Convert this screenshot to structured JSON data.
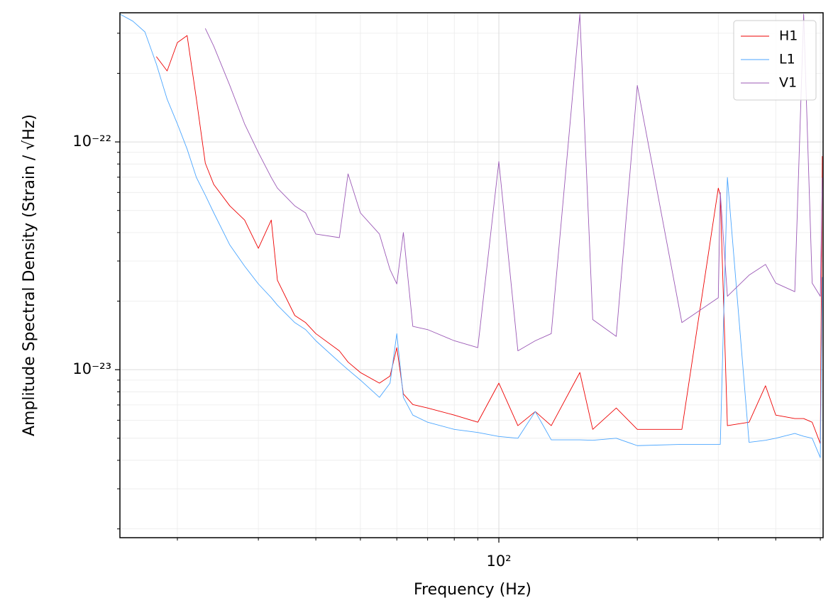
{
  "chart_data": {
    "type": "line",
    "xlabel": "Frequency (Hz)",
    "ylabel": "Amplitude Spectral Density (Strain / √Hz)",
    "xscale": "log",
    "yscale": "log",
    "grid": true,
    "legend": "upper right",
    "xlim": [
      15,
      507
    ],
    "ylim": [
      1.83e-24,
      3.69e-22
    ],
    "xticks": [
      {
        "value": 100,
        "label": "10²"
      }
    ],
    "yticks": [
      {
        "value": 1e-23,
        "label": "10⁻²³"
      },
      {
        "value": 1e-22,
        "label": "10⁻²²"
      }
    ],
    "minor_xticks": [
      20,
      30,
      40,
      50,
      60,
      70,
      80,
      90,
      200,
      300,
      400,
      500
    ],
    "minor_yticks": [
      2e-24,
      3e-24,
      4e-24,
      5e-24,
      6e-24,
      7e-24,
      8e-24,
      9e-24,
      2e-23,
      3e-23,
      4e-23,
      5e-23,
      6e-23,
      7e-23,
      8e-23,
      9e-23,
      2e-22,
      3e-22
    ],
    "x": [
      15,
      16,
      17,
      18,
      19,
      20,
      21,
      22,
      23,
      24,
      26,
      28,
      30,
      32,
      33,
      36,
      38,
      40,
      45,
      47,
      50,
      55,
      58,
      60,
      62,
      65,
      70,
      80,
      90,
      100,
      110,
      120,
      130,
      150,
      160,
      180,
      200,
      250,
      300,
      303,
      314,
      350,
      380,
      400,
      440,
      460,
      480,
      500,
      505
    ],
    "series": [
      {
        "name": "H1",
        "color": "#ee0000",
        "values": [
          null,
          null,
          null,
          2.37e-22,
          2.05e-22,
          2.73e-22,
          2.93e-22,
          1.54e-22,
          8.07e-23,
          6.5e-23,
          5.24e-23,
          4.54e-23,
          3.41e-23,
          4.54e-23,
          2.47e-23,
          1.73e-23,
          1.61e-23,
          1.44e-23,
          1.21e-23,
          1.08e-23,
          9.72e-24,
          8.73e-24,
          9.38e-24,
          1.25e-23,
          7.83e-24,
          7.03e-24,
          6.79e-24,
          6.32e-24,
          5.88e-24,
          8.73e-24,
          5.68e-24,
          6.55e-24,
          5.68e-24,
          9.72e-24,
          5.47e-24,
          6.79e-24,
          5.47e-24,
          5.47e-24,
          6.27e-23,
          5.84e-23,
          5.68e-24,
          5.88e-24,
          8.5e-24,
          6.32e-24,
          6.1e-24,
          6.1e-24,
          5.88e-24,
          4.74e-24,
          8.66e-23
        ]
      },
      {
        "name": "L1",
        "color": "#4ba6ff",
        "values": [
          3.64e-22,
          3.39e-22,
          3.04e-22,
          2.2e-22,
          1.54e-22,
          1.2e-22,
          9.3e-23,
          6.98e-23,
          5.84e-23,
          4.88e-23,
          3.53e-23,
          2.85e-23,
          2.38e-23,
          2.07e-23,
          1.92e-23,
          1.61e-23,
          1.5e-23,
          1.34e-23,
          1.08e-23,
          1e-23,
          9e-24,
          7.56e-24,
          8.73e-24,
          1.44e-23,
          7.56e-24,
          6.32e-24,
          5.88e-24,
          5.47e-24,
          5.3e-24,
          5.09e-24,
          5e-24,
          6.55e-24,
          4.92e-24,
          4.92e-24,
          4.9e-24,
          5e-24,
          4.64e-24,
          4.7e-24,
          4.7e-24,
          4.7e-24,
          6.98e-23,
          4.8e-24,
          4.9e-24,
          5e-24,
          5.25e-24,
          5.1e-24,
          5e-24,
          4.11e-24,
          2.55e-23
        ]
      },
      {
        "name": "V1",
        "color": "#9b59b6",
        "values": [
          null,
          null,
          null,
          null,
          null,
          null,
          null,
          null,
          3.15e-22,
          2.63e-22,
          1.77e-22,
          1.2e-22,
          8.98e-23,
          6.98e-23,
          6.27e-23,
          5.24e-23,
          4.88e-23,
          3.94e-23,
          3.8e-23,
          7.24e-23,
          4.88e-23,
          3.94e-23,
          2.75e-23,
          2.38e-23,
          4e-23,
          1.55e-23,
          1.5e-23,
          1.34e-23,
          1.25e-23,
          8.2e-23,
          1.21e-23,
          1.34e-23,
          1.44e-23,
          3.64e-22,
          1.66e-23,
          1.4e-23,
          1.77e-22,
          1.61e-23,
          2.07e-23,
          6e-23,
          2.1e-23,
          2.6e-23,
          2.9e-23,
          2.4e-23,
          2.2e-23,
          3.64e-22,
          2.4e-23,
          2.1e-23,
          6.98e-23
        ]
      }
    ]
  }
}
